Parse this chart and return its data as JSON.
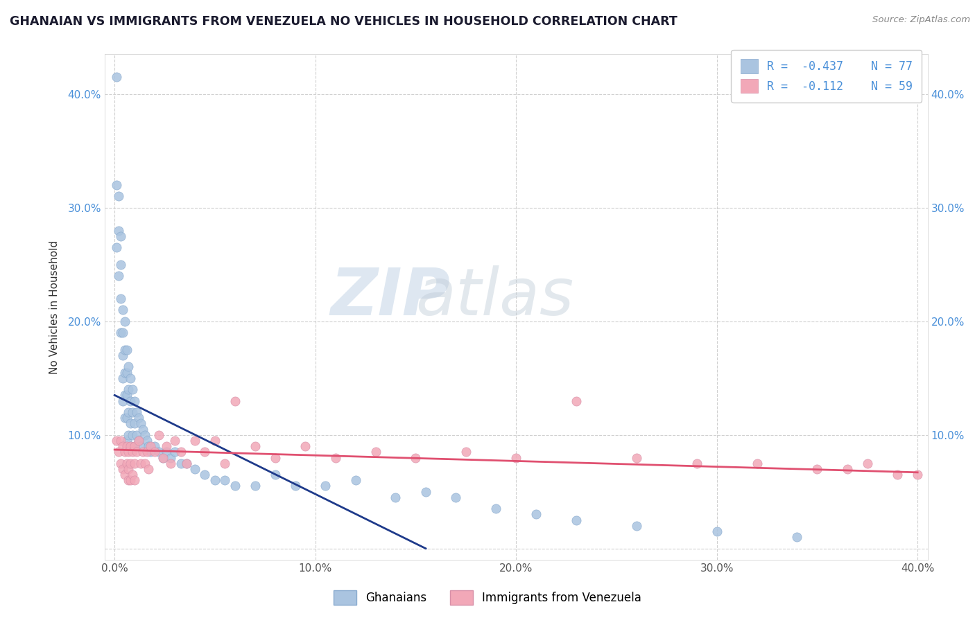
{
  "title": "GHANAIAN VS IMMIGRANTS FROM VENEZUELA NO VEHICLES IN HOUSEHOLD CORRELATION CHART",
  "source_text": "Source: ZipAtlas.com",
  "ylabel": "No Vehicles in Household",
  "xlim": [
    -0.005,
    0.405
  ],
  "ylim": [
    -0.01,
    0.435
  ],
  "x_ticks": [
    0.0,
    0.1,
    0.2,
    0.3,
    0.4
  ],
  "y_ticks": [
    0.0,
    0.1,
    0.2,
    0.3,
    0.4
  ],
  "blue_R": -0.437,
  "blue_N": 77,
  "pink_R": -0.112,
  "pink_N": 59,
  "blue_scatter_color": "#aac4e0",
  "pink_scatter_color": "#f2a8b8",
  "blue_line_color": "#1e3a8a",
  "pink_line_color": "#e05070",
  "legend_label_blue": "Ghanaians",
  "legend_label_pink": "Immigrants from Venezuela",
  "blue_line_x0": 0.0,
  "blue_line_y0": 0.135,
  "blue_line_x1": 0.155,
  "blue_line_y1": 0.0,
  "pink_line_x0": 0.0,
  "pink_line_y0": 0.087,
  "pink_line_x1": 0.4,
  "pink_line_y1": 0.067,
  "blue_points_x": [
    0.001,
    0.001,
    0.001,
    0.002,
    0.002,
    0.002,
    0.003,
    0.003,
    0.003,
    0.003,
    0.004,
    0.004,
    0.004,
    0.004,
    0.004,
    0.005,
    0.005,
    0.005,
    0.005,
    0.005,
    0.006,
    0.006,
    0.006,
    0.006,
    0.006,
    0.007,
    0.007,
    0.007,
    0.007,
    0.008,
    0.008,
    0.008,
    0.008,
    0.009,
    0.009,
    0.009,
    0.01,
    0.01,
    0.01,
    0.011,
    0.011,
    0.012,
    0.012,
    0.013,
    0.013,
    0.014,
    0.015,
    0.016,
    0.017,
    0.018,
    0.02,
    0.022,
    0.024,
    0.026,
    0.028,
    0.03,
    0.033,
    0.036,
    0.04,
    0.045,
    0.05,
    0.055,
    0.06,
    0.07,
    0.08,
    0.09,
    0.105,
    0.12,
    0.14,
    0.155,
    0.17,
    0.19,
    0.21,
    0.23,
    0.26,
    0.3,
    0.34
  ],
  "blue_points_y": [
    0.415,
    0.32,
    0.265,
    0.31,
    0.28,
    0.24,
    0.275,
    0.25,
    0.22,
    0.19,
    0.21,
    0.19,
    0.17,
    0.15,
    0.13,
    0.2,
    0.175,
    0.155,
    0.135,
    0.115,
    0.175,
    0.155,
    0.135,
    0.115,
    0.095,
    0.16,
    0.14,
    0.12,
    0.1,
    0.15,
    0.13,
    0.11,
    0.09,
    0.14,
    0.12,
    0.1,
    0.13,
    0.11,
    0.09,
    0.12,
    0.1,
    0.115,
    0.095,
    0.11,
    0.09,
    0.105,
    0.1,
    0.095,
    0.09,
    0.085,
    0.09,
    0.085,
    0.08,
    0.085,
    0.08,
    0.085,
    0.075,
    0.075,
    0.07,
    0.065,
    0.06,
    0.06,
    0.055,
    0.055,
    0.065,
    0.055,
    0.055,
    0.06,
    0.045,
    0.05,
    0.045,
    0.035,
    0.03,
    0.025,
    0.02,
    0.015,
    0.01
  ],
  "pink_points_x": [
    0.001,
    0.002,
    0.003,
    0.003,
    0.004,
    0.004,
    0.005,
    0.005,
    0.006,
    0.006,
    0.007,
    0.007,
    0.007,
    0.008,
    0.008,
    0.008,
    0.009,
    0.009,
    0.01,
    0.01,
    0.01,
    0.011,
    0.012,
    0.013,
    0.014,
    0.015,
    0.016,
    0.017,
    0.018,
    0.02,
    0.022,
    0.024,
    0.026,
    0.028,
    0.03,
    0.033,
    0.036,
    0.04,
    0.045,
    0.05,
    0.055,
    0.06,
    0.07,
    0.08,
    0.095,
    0.11,
    0.13,
    0.15,
    0.175,
    0.2,
    0.23,
    0.26,
    0.29,
    0.32,
    0.35,
    0.365,
    0.375,
    0.39,
    0.4
  ],
  "pink_points_y": [
    0.095,
    0.085,
    0.095,
    0.075,
    0.09,
    0.07,
    0.085,
    0.065,
    0.09,
    0.075,
    0.085,
    0.07,
    0.06,
    0.09,
    0.075,
    0.06,
    0.085,
    0.065,
    0.09,
    0.075,
    0.06,
    0.085,
    0.095,
    0.075,
    0.085,
    0.075,
    0.085,
    0.07,
    0.09,
    0.085,
    0.1,
    0.08,
    0.09,
    0.075,
    0.095,
    0.085,
    0.075,
    0.095,
    0.085,
    0.095,
    0.075,
    0.13,
    0.09,
    0.08,
    0.09,
    0.08,
    0.085,
    0.08,
    0.085,
    0.08,
    0.13,
    0.08,
    0.075,
    0.075,
    0.07,
    0.07,
    0.075,
    0.065,
    0.065
  ]
}
